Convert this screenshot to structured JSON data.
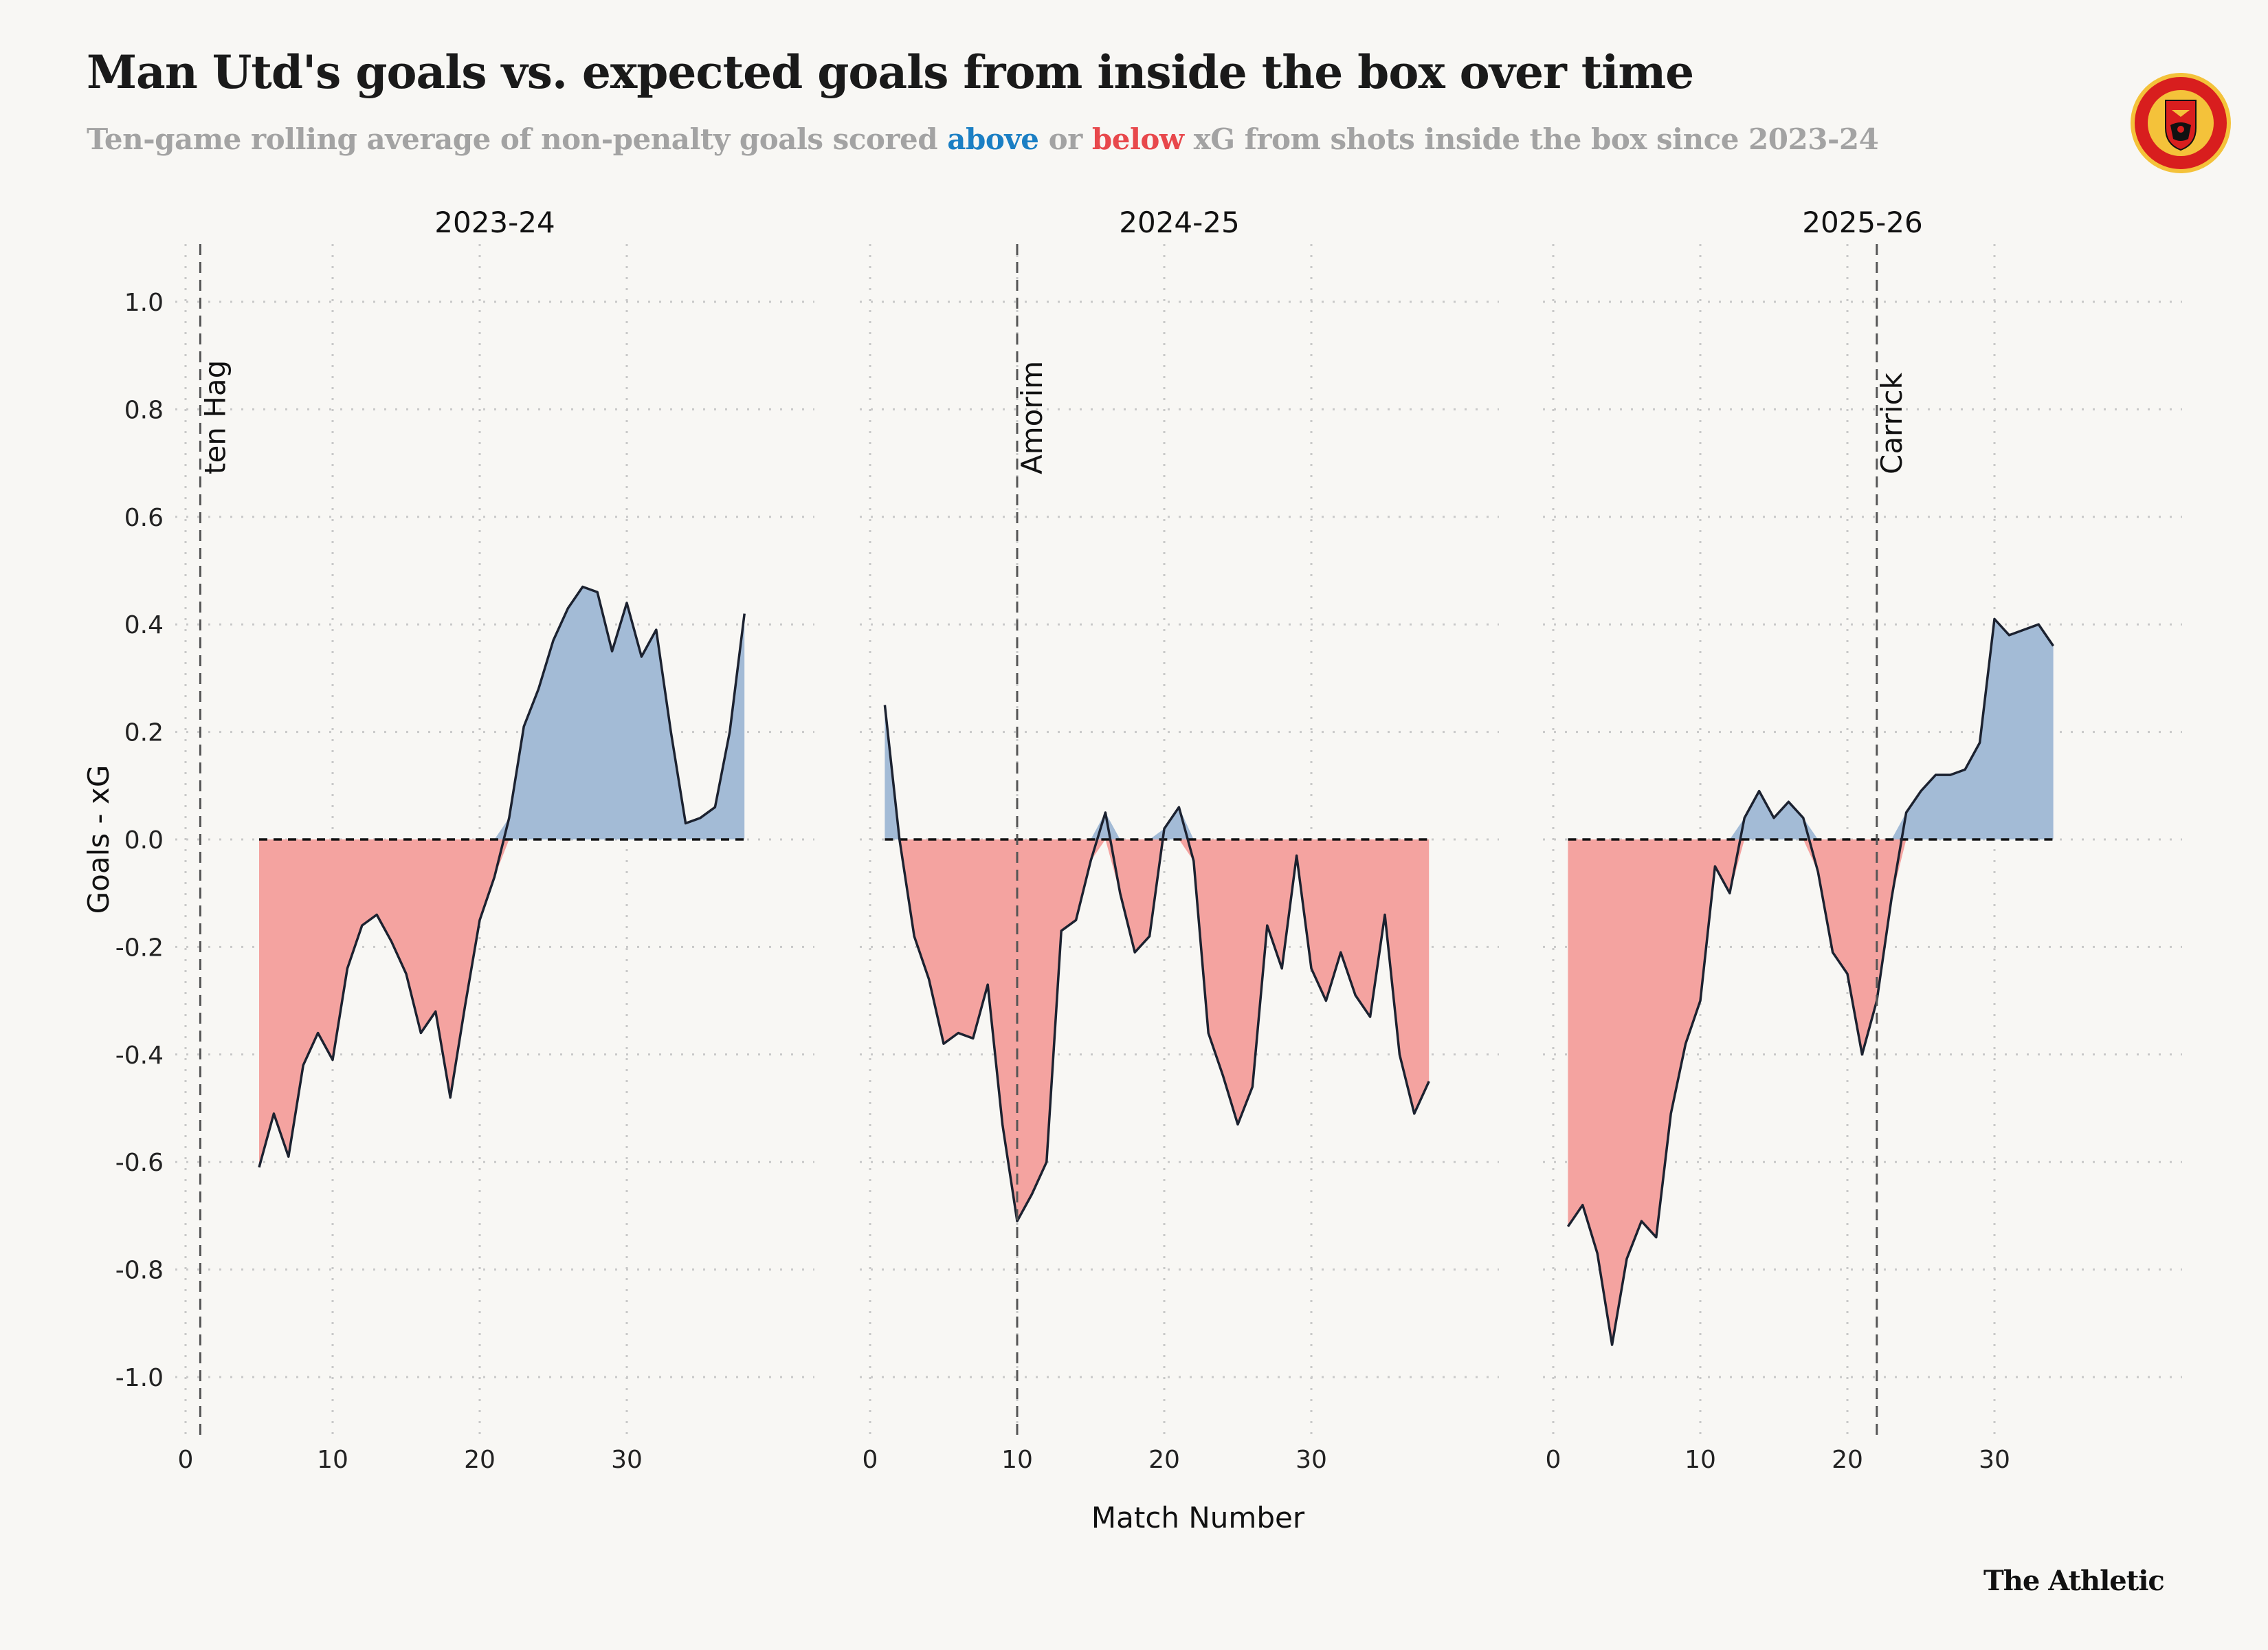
{
  "title": "Man Utd's goals vs. expected goals from inside the box over time",
  "subtitle": {
    "before": "Ten-game rolling average of non-penalty goals scored ",
    "above": "above",
    "middle": " or ",
    "below": "below",
    "after": " xG from shots inside the box since 2023-24"
  },
  "credit": "The Athletic",
  "crest_alt": "Manchester United crest",
  "colors": {
    "above": "#1b7fc4",
    "below": "#e8484c",
    "fill_above": "#a3bbd6",
    "fill_below": "#f4a3a0",
    "line": "#1c2230",
    "background": "#f8f7f4"
  },
  "chart_data": {
    "type": "area",
    "ylabel": "Goals - xG",
    "xlabel": "Match Number",
    "ylim": [
      -1.1,
      1.1
    ],
    "yticks": [
      1.0,
      0.8,
      0.6,
      0.4,
      0.2,
      0.0,
      -0.2,
      -0.4,
      -0.6,
      -0.8,
      -1.0
    ],
    "ytick_labels": [
      "1.0",
      "0.8",
      "0.6",
      "0.4",
      "0.2",
      "0.0",
      "-0.2",
      "-0.4",
      "-0.6",
      "-0.8",
      "-1.0"
    ],
    "xticks": [
      0,
      10,
      20,
      30
    ],
    "xtick_labels": [
      "0",
      "10",
      "20",
      "30"
    ],
    "grid": true,
    "panels": [
      {
        "title": "2023-24",
        "xlim": [
          0,
          40
        ],
        "manager_changes": [
          {
            "match": 1,
            "name": "ten Hag"
          }
        ],
        "x": [
          5,
          6,
          7,
          8,
          9,
          10,
          11,
          12,
          13,
          14,
          15,
          16,
          17,
          18,
          19,
          20,
          21,
          22,
          23,
          24,
          25,
          26,
          27,
          28,
          29,
          30,
          31,
          32,
          33,
          34,
          35,
          36,
          37,
          38
        ],
        "y": [
          -0.61,
          -0.51,
          -0.59,
          -0.42,
          -0.36,
          -0.41,
          -0.24,
          -0.16,
          -0.14,
          -0.19,
          -0.25,
          -0.36,
          -0.32,
          -0.48,
          -0.31,
          -0.15,
          -0.07,
          0.04,
          0.21,
          0.28,
          0.37,
          0.43,
          0.47,
          0.46,
          0.35,
          0.44,
          0.34,
          0.39,
          0.2,
          0.03,
          0.04,
          0.06,
          0.2,
          0.42
        ]
      },
      {
        "title": "2024-25",
        "xlim": [
          0,
          40
        ],
        "manager_changes": [
          {
            "match": 10,
            "name": "Amorim"
          }
        ],
        "x": [
          1,
          2,
          3,
          4,
          5,
          6,
          7,
          8,
          9,
          10,
          11,
          12,
          13,
          14,
          15,
          16,
          17,
          18,
          19,
          20,
          21,
          22,
          23,
          24,
          25,
          26,
          27,
          28,
          29,
          30,
          31,
          32,
          33,
          34,
          35,
          36,
          37,
          38
        ],
        "y": [
          0.25,
          0.0,
          -0.18,
          -0.26,
          -0.38,
          -0.36,
          -0.37,
          -0.27,
          -0.53,
          -0.71,
          -0.66,
          -0.6,
          -0.17,
          -0.15,
          -0.04,
          0.05,
          -0.1,
          -0.21,
          -0.18,
          0.02,
          0.06,
          -0.04,
          -0.36,
          -0.44,
          -0.53,
          -0.46,
          -0.16,
          -0.24,
          -0.03,
          -0.24,
          -0.3,
          -0.21,
          -0.29,
          -0.33,
          -0.14,
          -0.4,
          -0.51,
          -0.45
        ]
      },
      {
        "title": "2025-26",
        "xlim": [
          0,
          40
        ],
        "manager_changes": [
          {
            "match": 22,
            "name": "Carrick"
          }
        ],
        "x": [
          1,
          2,
          3,
          4,
          5,
          6,
          7,
          8,
          9,
          10,
          11,
          12,
          13,
          14,
          15,
          16,
          17,
          18,
          19,
          20,
          21,
          22,
          23,
          24,
          25,
          26,
          27,
          28,
          29,
          30,
          31,
          32,
          33,
          34
        ],
        "y": [
          -0.72,
          -0.68,
          -0.77,
          -0.94,
          -0.78,
          -0.71,
          -0.74,
          -0.51,
          -0.38,
          -0.3,
          -0.05,
          -0.1,
          0.04,
          0.09,
          0.04,
          0.07,
          0.04,
          -0.06,
          -0.21,
          -0.25,
          -0.4,
          -0.3,
          -0.11,
          0.05,
          0.09,
          0.12,
          0.12,
          0.13,
          0.18,
          0.41,
          0.38,
          0.39,
          0.4,
          0.36
        ]
      }
    ]
  }
}
